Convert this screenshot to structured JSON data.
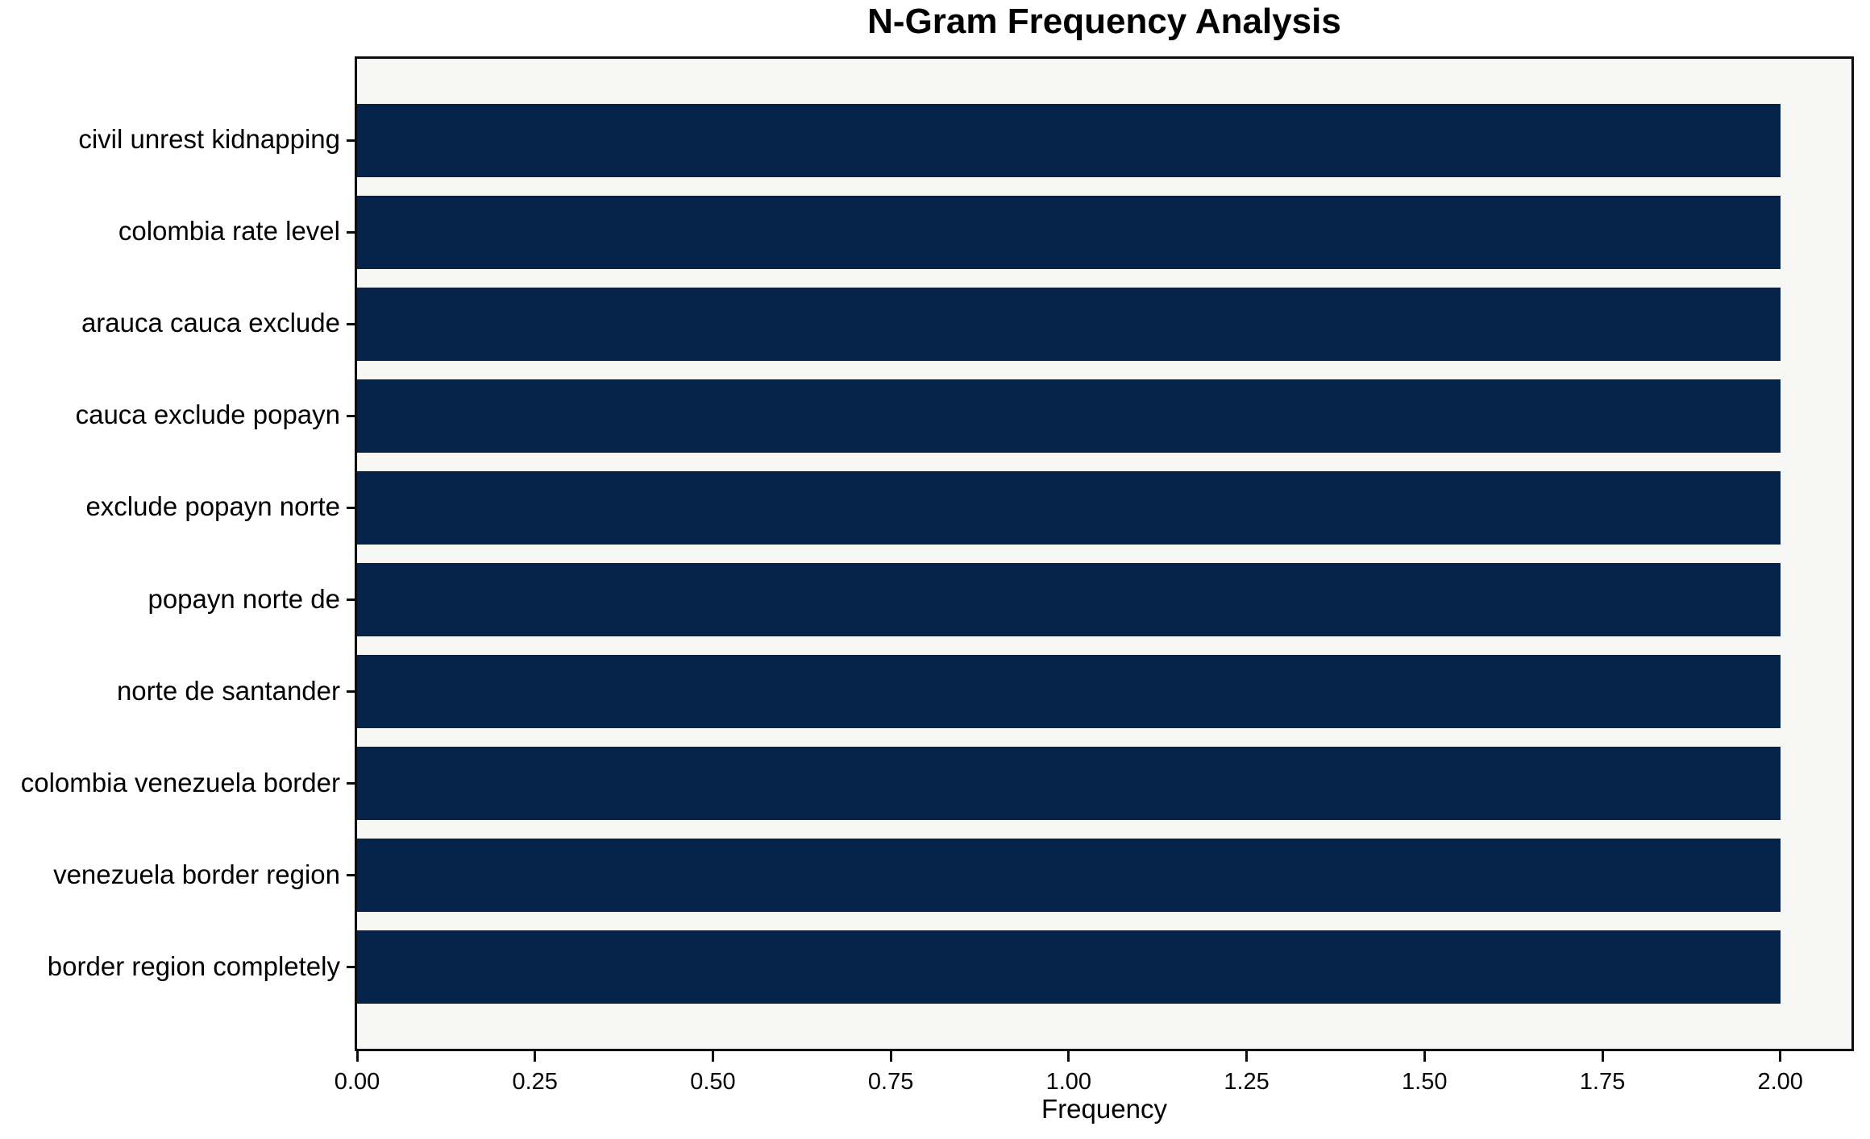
{
  "chart_data": {
    "type": "bar",
    "orientation": "horizontal",
    "title": "N-Gram Frequency Analysis",
    "xlabel": "Frequency",
    "ylabel": "",
    "categories": [
      "civil unrest kidnapping",
      "colombia rate level",
      "arauca cauca exclude",
      "cauca exclude popayn",
      "exclude popayn norte",
      "popayn norte de",
      "norte de santander",
      "colombia venezuela border",
      "venezuela border region",
      "border region completely"
    ],
    "values": [
      2,
      2,
      2,
      2,
      2,
      2,
      2,
      2,
      2,
      2
    ],
    "xlim": [
      0,
      2.1
    ],
    "xtick_labels": [
      "0.00",
      "0.25",
      "0.50",
      "0.75",
      "1.00",
      "1.25",
      "1.50",
      "1.75",
      "2.00"
    ],
    "xtick_values": [
      0,
      0.25,
      0.5,
      0.75,
      1.0,
      1.25,
      1.5,
      1.75,
      2.0
    ],
    "grid": false,
    "legend": null,
    "bar_color": "#06234b",
    "plot_bg": "#f7f7f6",
    "figure_bg": "#ffffff",
    "spine_color": "#0d0d0d"
  }
}
